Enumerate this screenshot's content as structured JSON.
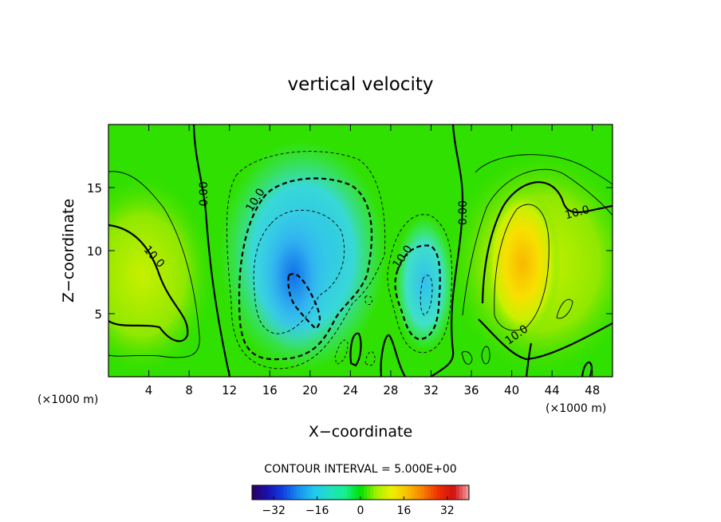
{
  "chart_data": {
    "type": "heatmap",
    "title": "vertical velocity",
    "xlabel": "X−coordinate",
    "ylabel": "Z−coordinate",
    "x_unit_left": "(×1000 m)",
    "x_unit_right": "(×1000 m)",
    "xlim": [
      0,
      50
    ],
    "ylim": [
      0,
      20
    ],
    "x_ticks": [
      4,
      8,
      12,
      16,
      20,
      24,
      28,
      32,
      36,
      40,
      44,
      48
    ],
    "y_ticks": [
      5,
      10,
      15
    ],
    "contour_interval_text": "CONTOUR INTERVAL = 5.000E+00",
    "contour_labels": [
      {
        "text": "0.00",
        "x": 9.5,
        "y": 14.5,
        "angle": -90
      },
      {
        "text": "10.0",
        "x": 14.6,
        "y": 14.0,
        "angle": -58
      },
      {
        "text": "10.0",
        "x": 4.5,
        "y": 9.5,
        "angle": 48
      },
      {
        "text": "10.0",
        "x": 29.2,
        "y": 9.5,
        "angle": -55
      },
      {
        "text": "0.00",
        "x": 35.2,
        "y": 13.0,
        "angle": -90
      },
      {
        "text": "10.0",
        "x": 46.5,
        "y": 13.0,
        "angle": -15
      },
      {
        "text": "10.0",
        "x": 40.5,
        "y": 3.3,
        "angle": -35
      }
    ],
    "features": [
      {
        "name": "downdraft-core",
        "x": 19,
        "z": 6.5,
        "value": -22
      },
      {
        "name": "downdraft-small",
        "x": 31.5,
        "z": 7,
        "value": -12
      },
      {
        "name": "updraft-left",
        "x": 4,
        "z": 7,
        "value": 10
      },
      {
        "name": "updraft-right",
        "x": 41,
        "z": 9,
        "value": 26
      }
    ],
    "colorbar": {
      "min": -40,
      "max": 40,
      "ticks": [
        -32,
        -16,
        0,
        16,
        32
      ],
      "tick_labels": [
        "−32",
        "−16",
        "0",
        "16",
        "32"
      ],
      "colors": [
        "#2a0060",
        "#1a10b0",
        "#1040e0",
        "#1890f0",
        "#20c8f0",
        "#20e0c0",
        "#18f090",
        "#00e000",
        "#a0f000",
        "#f0f000",
        "#f8c000",
        "#f88000",
        "#f03000",
        "#d01010",
        "#f0a0a0"
      ]
    }
  }
}
